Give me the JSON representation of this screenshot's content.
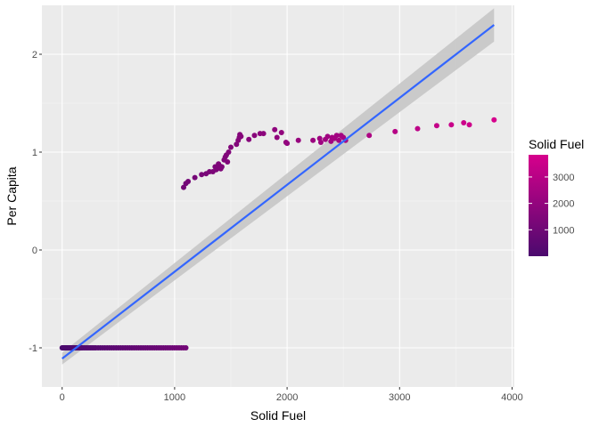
{
  "chart_data": {
    "type": "scatter",
    "title": "",
    "xlabel": "Solid Fuel",
    "ylabel": "Per Capita",
    "xlim": [
      -180,
      4020
    ],
    "ylim": [
      -1.4,
      2.5
    ],
    "x_ticks": [
      0,
      1000,
      2000,
      3000,
      4000
    ],
    "x_tick_labels": [
      "0",
      "1000",
      "2000",
      "3000",
      "4000"
    ],
    "y_ticks": [
      -1,
      0,
      1,
      2
    ],
    "y_tick_labels": [
      "-1",
      "0",
      "1",
      "2"
    ],
    "grid": true,
    "legend": {
      "title": "Solid Fuel",
      "position": "right",
      "type": "colorbar",
      "range": [
        0,
        3840
      ],
      "breaks": [
        1000,
        2000,
        3000
      ],
      "break_labels": [
        "1000",
        "2000",
        "3000"
      ],
      "color_low": "#4b0a6e",
      "color_high": "#d6008c"
    },
    "series": [
      {
        "type": "points",
        "color_by": "x",
        "x": [
          0,
          8,
          16,
          24,
          32,
          40,
          48,
          56,
          64,
          72,
          80,
          88,
          96,
          104,
          112,
          120,
          130,
          140,
          150,
          160,
          170,
          180,
          195,
          210,
          225,
          240,
          255,
          270,
          285,
          300,
          320,
          340,
          360,
          380,
          400,
          420,
          440,
          460,
          480,
          500,
          520,
          540,
          560,
          580,
          600,
          620,
          640,
          660,
          680,
          700,
          720,
          740,
          760,
          780,
          800,
          820,
          840,
          860,
          880,
          900,
          920,
          940,
          960,
          980,
          1000,
          1020,
          1040,
          1060,
          1080,
          1100,
          1080,
          1100,
          1120,
          1180,
          1240,
          1280,
          1310,
          1340,
          1360,
          1370,
          1380,
          1390,
          1400,
          1410,
          1420,
          1440,
          1450,
          1460,
          1470,
          1480,
          1500,
          1550,
          1565,
          1575,
          1580,
          1590,
          1660,
          1710,
          1760,
          1790,
          1890,
          1910,
          1950,
          1990,
          2000,
          2100,
          2230,
          2290,
          2300,
          2340,
          2360,
          2390,
          2400,
          2420,
          2440,
          2460,
          2480,
          2500,
          2520,
          2730,
          2960,
          3160,
          3330,
          3460,
          3570,
          3620,
          3840
        ],
        "y": [
          -1,
          -1,
          -1,
          -1,
          -1,
          -1,
          -1,
          -1,
          -1,
          -1,
          -1,
          -1,
          -1,
          -1,
          -1,
          -1,
          -1,
          -1,
          -1,
          -1,
          -1,
          -1,
          -1,
          -1,
          -1,
          -1,
          -1,
          -1,
          -1,
          -1,
          -1,
          -1,
          -1,
          -1,
          -1,
          -1,
          -1,
          -1,
          -1,
          -1,
          -1,
          -1,
          -1,
          -1,
          -1,
          -1,
          -1,
          -1,
          -1,
          -1,
          -1,
          -1,
          -1,
          -1,
          -1,
          -1,
          -1,
          -1,
          -1,
          -1,
          -1,
          -1,
          -1,
          -1,
          -1,
          -1,
          -1,
          -1,
          -1,
          -1,
          0.64,
          0.68,
          0.7,
          0.74,
          0.77,
          0.78,
          0.8,
          0.8,
          0.85,
          0.82,
          0.84,
          0.88,
          0.86,
          0.83,
          0.85,
          0.92,
          0.95,
          0.97,
          0.9,
          1.0,
          1.05,
          1.08,
          1.12,
          1.15,
          1.18,
          1.16,
          1.13,
          1.17,
          1.19,
          1.19,
          1.23,
          1.15,
          1.2,
          1.1,
          1.09,
          1.12,
          1.12,
          1.14,
          1.1,
          1.13,
          1.16,
          1.11,
          1.15,
          1.14,
          1.17,
          1.12,
          1.17,
          1.15,
          1.12,
          1.17,
          1.21,
          1.24,
          1.27,
          1.28,
          1.3,
          1.28,
          1.33
        ]
      },
      {
        "type": "regression_line",
        "name": "",
        "color": "#3366ff",
        "x": [
          0,
          3840
        ],
        "y": [
          -1.11,
          2.3
        ],
        "band_lower": [
          -1.17,
          2.13
        ],
        "band_upper": [
          -1.05,
          2.47
        ],
        "band_color": "#c6c6c6"
      }
    ]
  }
}
